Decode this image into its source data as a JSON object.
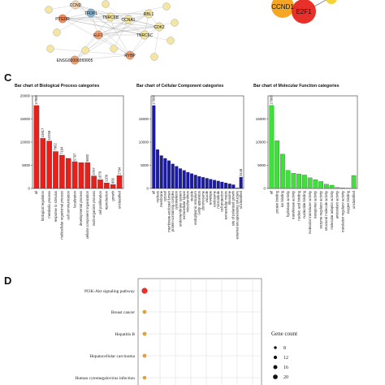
{
  "panels": {
    "network_letter": "",
    "bar_letter": "C",
    "dot_letter": "D"
  },
  "network": {
    "nodes_left": [
      {
        "label": "CCND",
        "color": "#f7d7b0",
        "level": 0.5
      },
      {
        "label": "TFDP1",
        "color": "#7fb3d5",
        "level": 0.4
      },
      {
        "label": "TNRC6B",
        "color": "#f4e6a2",
        "level": 0.5
      },
      {
        "label": "PTGDR",
        "color": "#ef8a5a",
        "level": 0.6
      },
      {
        "label": "CCNA1",
        "color": "#f4e6a2",
        "level": 0.5
      },
      {
        "label": "RBL1",
        "color": "#f4e6a2",
        "level": 0.5
      },
      {
        "label": "CDK2",
        "color": "#f4e6a2",
        "level": 0.5
      },
      {
        "label": "TNRC6C",
        "color": "#f4e6a2",
        "level": 0.5
      },
      {
        "label": "ELF1",
        "color": "#f0a070",
        "level": 0.6
      },
      {
        "label": "RYBP",
        "color": "#f0a070",
        "level": 0.6
      },
      {
        "label": "ENSG00000269905",
        "color": "#f0a070",
        "level": 0.6
      }
    ],
    "nodes_right": [
      {
        "label": "CCND1",
        "color": "#f5a623"
      },
      {
        "label": "E2F1",
        "color": "#e8302a"
      }
    ]
  },
  "chart_data": [
    {
      "type": "bar",
      "title": "Bar chart of Biological Process categories",
      "color": "#e8201c",
      "ylim": [
        0,
        20000
      ],
      "yticks": [
        0,
        5000,
        10000,
        15000,
        20000
      ],
      "categories": [
        "all",
        "biological regulation",
        "metabolic process",
        "response to stimulus",
        "multicellular organismal process",
        "cell communication",
        "localization",
        "developmental process",
        "cellular component organization",
        "multi-organism process",
        "cell proliferation",
        "reproduction",
        "growth",
        "unclassified"
      ],
      "values": [
        17908,
        10817,
        10258,
        7982,
        7194,
        6500,
        5797,
        5582,
        5582,
        2707,
        1879,
        1206,
        856,
        2794
      ],
      "labels": [
        "17908",
        "10817",
        "10258",
        "7982",
        "7194",
        "",
        "5797",
        "",
        "5582",
        "2707",
        "1879",
        "1206",
        "856",
        "2794"
      ]
    },
    {
      "type": "bar",
      "title": "Bar chart of Cellular Component categories",
      "color": "#1a1aa8",
      "ylim": [
        0,
        20000
      ],
      "yticks": [
        0,
        5000,
        10000,
        15000
      ],
      "categories": [
        "all",
        "nucleus",
        "membrane",
        "cytosol",
        "membrane-enclosed lumen",
        "protein-containing complex",
        "cytoskeleton",
        "endomembrane system",
        "extracellular space",
        "mitochondrion",
        "vesicle",
        "endoplasmic reticulum",
        "Golgi apparatus",
        "chromosome",
        "vacuole",
        "envelope",
        "endosome",
        "microtubule",
        "cell projection",
        "extracellular matrix",
        "ribosome",
        "site of polarized growth",
        "external encapsulating structure",
        "unclassified"
      ],
      "values": [
        17908,
        8400,
        7100,
        6500,
        6000,
        5300,
        4800,
        4300,
        3900,
        3500,
        3200,
        2900,
        2600,
        2400,
        2200,
        2000,
        1800,
        1600,
        1400,
        1200,
        1000,
        800,
        100,
        2448
      ],
      "labels": [
        "17908",
        "",
        "",
        "",
        "",
        "",
        "",
        "",
        "",
        "",
        "",
        "",
        "",
        "",
        "",
        "",
        "",
        "",
        "",
        "",
        "",
        "",
        "",
        "2448"
      ]
    },
    {
      "type": "bar",
      "title": "Bar chart of Molecular Function categories",
      "color": "#3ee03a",
      "ylim": [
        0,
        20000
      ],
      "yticks": [
        0,
        5000,
        10000,
        15000
      ],
      "categories": [
        "all",
        "protein binding",
        "ion binding",
        "hydrolase activity",
        "transferase activity",
        "nucleic acid binding",
        "nucleotide binding",
        "molecular transducer activity",
        "transporter activity",
        "enzyme regulator activity",
        "structural molecule activity",
        "molecular adaptor activity",
        "antioxidant activity",
        "translation regulator activity",
        "oxygen binding",
        "unclassified"
      ],
      "values": [
        17908,
        10300,
        7400,
        3900,
        3270,
        3100,
        2900,
        2300,
        1900,
        1500,
        900,
        700,
        200,
        110,
        37,
        2800
      ],
      "labels": [
        "17908",
        "",
        "",
        "",
        "",
        "",
        "",
        "",
        "",
        "",
        "",
        "",
        "",
        "",
        "",
        ""
      ]
    },
    {
      "type": "scatter",
      "categories": [
        "PI3K-Akt signaling pathway",
        "Breast cancer",
        "Hepatitis B",
        "Hepatocellular carcinoma",
        "Human cytomegalovirus infection"
      ],
      "counts": [
        20,
        10,
        10,
        10,
        9
      ],
      "colors": [
        "#e8302a",
        "#e0a040",
        "#e0a040",
        "#e0a040",
        "#e0a040"
      ],
      "legend_title": "Gene count",
      "legend_values": [
        8,
        12,
        16,
        20
      ],
      "legend_position": "right"
    }
  ]
}
